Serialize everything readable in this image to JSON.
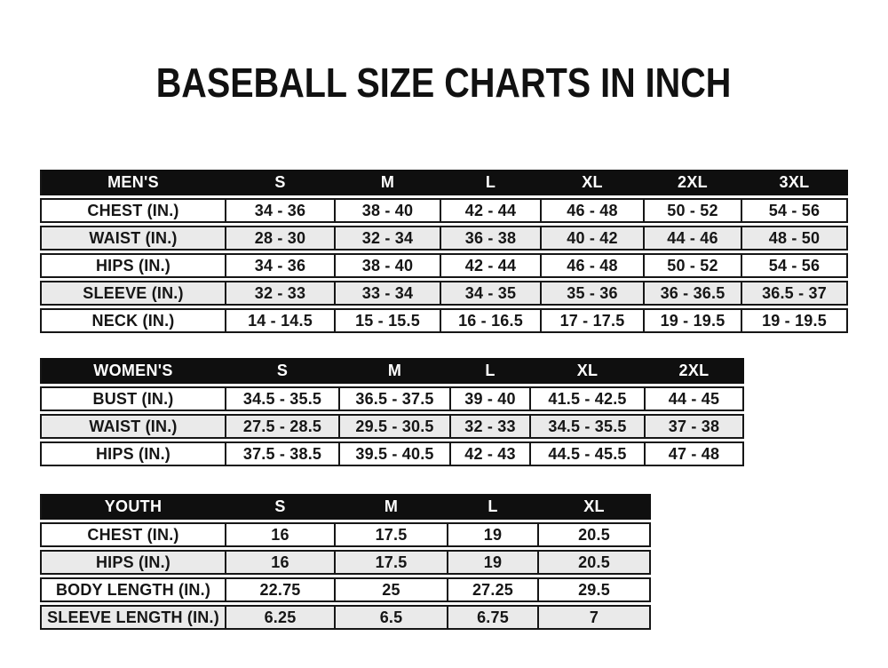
{
  "page": {
    "title": "BASEBALL SIZE CHARTS IN INCH",
    "unit": "IN."
  },
  "colors": {
    "page_bg": "#ffffff",
    "header_bg": "#0f0f0f",
    "header_text": "#ffffff",
    "row_alt_bg": "#eaeaea",
    "border": "#161616",
    "text": "#161616"
  },
  "tables": [
    {
      "name": "mens",
      "header": [
        "MEN'S",
        "S",
        "M",
        "L",
        "XL",
        "2XL",
        "3XL"
      ],
      "rows": [
        [
          "CHEST (IN.)",
          "34 - 36",
          "38 - 40",
          "42 - 44",
          "46 - 48",
          "50 - 52",
          "54 - 56"
        ],
        [
          "WAIST (IN.)",
          "28 - 30",
          "32 - 34",
          "36 - 38",
          "40 - 42",
          "44 - 46",
          "48 - 50"
        ],
        [
          "HIPS (IN.)",
          "34 - 36",
          "38 - 40",
          "42 - 44",
          "46 - 48",
          "50 - 52",
          "54 - 56"
        ],
        [
          "SLEEVE (IN.)",
          "32 - 33",
          "33 - 34",
          "34 - 35",
          "35 - 36",
          "36 - 36.5",
          "36.5 - 37"
        ],
        [
          "NECK (IN.)",
          "14 - 14.5",
          "15 - 15.5",
          "16 - 16.5",
          "17 - 17.5",
          "19 - 19.5",
          "19 - 19.5"
        ]
      ]
    },
    {
      "name": "womens",
      "header": [
        "WOMEN'S",
        "S",
        "M",
        "L",
        "XL",
        "2XL"
      ],
      "rows": [
        [
          "BUST (IN.)",
          "34.5 - 35.5",
          "36.5 - 37.5",
          "39 - 40",
          "41.5 - 42.5",
          "44 - 45"
        ],
        [
          "WAIST (IN.)",
          "27.5 - 28.5",
          "29.5 - 30.5",
          "32 - 33",
          "34.5 - 35.5",
          "37 - 38"
        ],
        [
          "HIPS (IN.)",
          "37.5 - 38.5",
          "39.5 - 40.5",
          "42 - 43",
          "44.5 - 45.5",
          "47 - 48"
        ]
      ]
    },
    {
      "name": "youth",
      "header": [
        "YOUTH",
        "S",
        "M",
        "L",
        "XL"
      ],
      "rows": [
        [
          "CHEST (IN.)",
          "16",
          "17.5",
          "19",
          "20.5"
        ],
        [
          "HIPS (IN.)",
          "16",
          "17.5",
          "19",
          "20.5"
        ],
        [
          "BODY LENGTH (IN.)",
          "22.75",
          "25",
          "27.25",
          "29.5"
        ],
        [
          "SLEEVE LENGTH (IN.)",
          "6.25",
          "6.5",
          "6.75",
          "7"
        ]
      ]
    }
  ]
}
